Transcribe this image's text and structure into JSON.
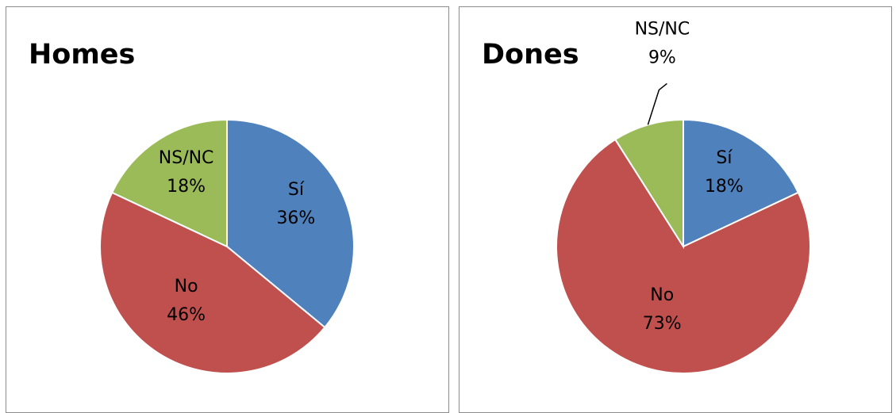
{
  "chart_data": [
    {
      "type": "pie",
      "title": "Homes",
      "slices": [
        {
          "label": "Sí",
          "value": 36,
          "value_label": "36%",
          "color": "#4F81BD"
        },
        {
          "label": "No",
          "value": 46,
          "value_label": "46%",
          "color": "#C0504D"
        },
        {
          "label": "NS/NC",
          "value": 18,
          "value_label": "18%",
          "color": "#9BBB59"
        }
      ]
    },
    {
      "type": "pie",
      "title": "Dones",
      "slices": [
        {
          "label": "Sí",
          "value": 18,
          "value_label": "18%",
          "color": "#4F81BD"
        },
        {
          "label": "No",
          "value": 73,
          "value_label": "73%",
          "color": "#C0504D"
        },
        {
          "label": "NS/NC",
          "value": 9,
          "value_label": "9%",
          "color": "#9BBB59",
          "label_outside": true
        }
      ]
    }
  ]
}
